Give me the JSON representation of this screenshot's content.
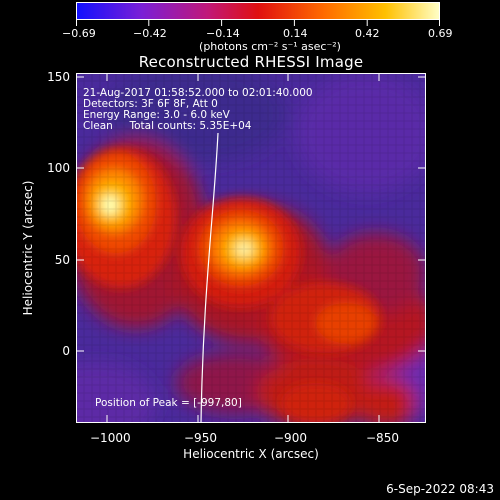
{
  "colorbar": {
    "ticks": [
      "−0.69",
      "−0.42",
      "−0.14",
      "0.14",
      "0.42",
      "0.69"
    ],
    "unit": "(photons cm⁻² s⁻¹ asec⁻²)",
    "colors": [
      "#1010ff",
      "#7a1fd6",
      "#c0187a",
      "#e01010",
      "#ff6a00",
      "#ffc000",
      "#ffffc8"
    ]
  },
  "title": "Reconstructed RHESSI Image",
  "annotations": {
    "time_range": "21-Aug-2017 01:58:52.000 to 02:01:40.000",
    "detectors": "Detectors: 3F 6F 8F, Att 0",
    "energy": "Energy Range: 3.0 - 6.0 keV",
    "clean": "Clean     Total counts: 5.35E+04",
    "peak": "Position of Peak = [-997,80]"
  },
  "axes": {
    "xlabel": "Heliocentric X (arcsec)",
    "ylabel": "Heliocentric Y (arcsec)",
    "xticks": [
      "−1000",
      "−950",
      "−900",
      "−850"
    ],
    "yticks": [
      "150",
      "100",
      "50",
      "0"
    ],
    "xrange": [
      -1018,
      -822
    ],
    "yrange": [
      -40,
      153
    ]
  },
  "datestamp": "6-Sep-2022 08:43"
}
